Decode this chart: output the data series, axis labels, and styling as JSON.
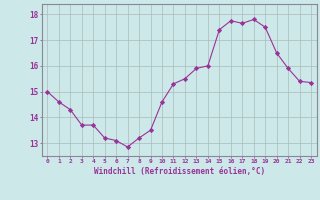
{
  "x": [
    0,
    1,
    2,
    3,
    4,
    5,
    6,
    7,
    8,
    9,
    10,
    11,
    12,
    13,
    14,
    15,
    16,
    17,
    18,
    19,
    20,
    21,
    22,
    23
  ],
  "y": [
    15.0,
    14.6,
    14.3,
    13.7,
    13.7,
    13.2,
    13.1,
    12.85,
    13.2,
    13.5,
    14.6,
    15.3,
    15.5,
    15.9,
    16.0,
    17.4,
    17.75,
    17.65,
    17.8,
    17.5,
    16.5,
    15.9,
    15.4,
    15.35
  ],
  "line_color": "#993399",
  "marker": "D",
  "marker_size": 2.2,
  "bg_color": "#cce8e8",
  "grid_color": "#aabbbb",
  "xlabel": "Windchill (Refroidissement éolien,°C)",
  "xlabel_color": "#993399",
  "xtick_labels": [
    "0",
    "1",
    "2",
    "3",
    "4",
    "5",
    "6",
    "7",
    "8",
    "9",
    "10",
    "11",
    "12",
    "13",
    "14",
    "15",
    "16",
    "17",
    "18",
    "19",
    "20",
    "21",
    "22",
    "23"
  ],
  "ytick_labels": [
    "13",
    "14",
    "15",
    "16",
    "17",
    "18"
  ],
  "yticks": [
    13,
    14,
    15,
    16,
    17,
    18
  ],
  "ylim": [
    12.5,
    18.4
  ],
  "xlim": [
    -0.5,
    23.5
  ],
  "tick_color": "#993399",
  "axis_color": "#993399",
  "spine_color": "#888899"
}
